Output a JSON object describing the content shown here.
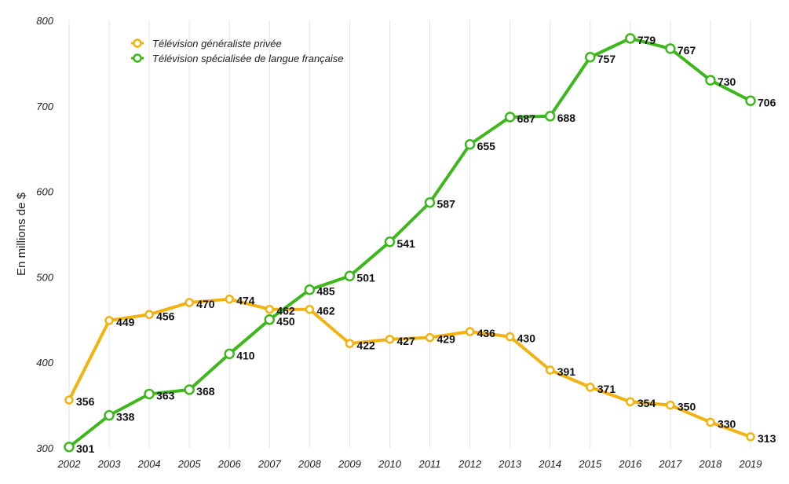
{
  "chart_data": {
    "type": "line",
    "title": "",
    "xlabel": "",
    "ylabel": "En millions de $",
    "ylim": [
      300,
      800
    ],
    "yticks": [
      300,
      400,
      500,
      600,
      700,
      800
    ],
    "grid": "vertical",
    "legend_position": "top-left",
    "categories": [
      "2002",
      "2003",
      "2004",
      "2005",
      "2006",
      "2007",
      "2008",
      "2009",
      "2010",
      "2011",
      "2012",
      "2013",
      "2014",
      "2015",
      "2016",
      "2017",
      "2018",
      "2019"
    ],
    "series": [
      {
        "name": "Télévision généraliste privée",
        "color": "#f2b20f",
        "values": [
          356,
          449,
          456,
          470,
          474,
          462,
          462,
          422,
          427,
          429,
          436,
          430,
          391,
          371,
          354,
          350,
          330,
          313
        ],
        "labels": [
          "356",
          "449",
          "456",
          "470",
          "474",
          "462",
          "462",
          "422",
          "427",
          "429",
          "436",
          "430",
          "391",
          "371",
          "354",
          "350",
          "330",
          "313"
        ]
      },
      {
        "name": "Télévision spécialisée de langue française",
        "color": "#3db81c",
        "values": [
          301,
          338,
          363,
          368,
          410,
          450,
          485,
          501,
          541,
          587,
          655,
          687,
          688,
          757,
          779,
          767,
          730,
          706
        ],
        "labels": [
          "301",
          "338",
          "363",
          "368",
          "410",
          "450",
          "485",
          "501",
          "541",
          "587",
          "655",
          "687",
          "688",
          "757",
          "779",
          "767",
          "730",
          "706"
        ]
      }
    ]
  }
}
